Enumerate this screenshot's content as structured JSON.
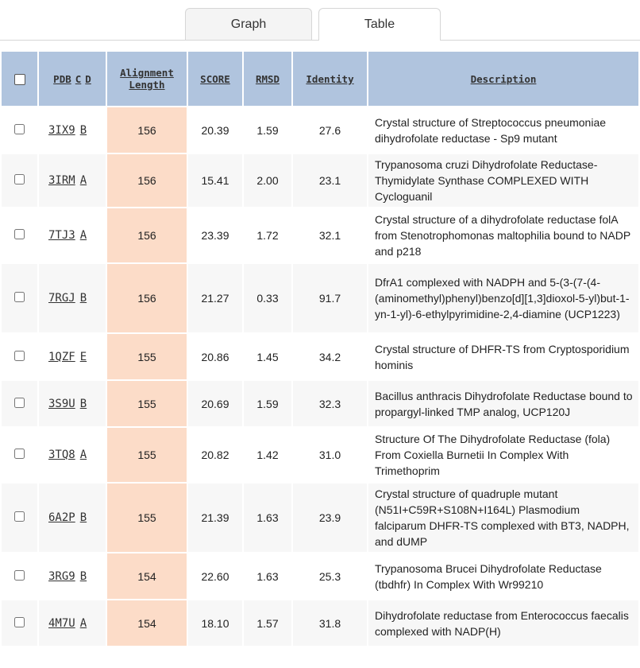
{
  "tabs": {
    "graph": "Graph",
    "table": "Table"
  },
  "headers": {
    "pdb": "PDB",
    "c": "C",
    "d": "D",
    "alignment_line1": "Alignment",
    "alignment_line2": "Length",
    "score": "SCORE",
    "rmsd": "RMSD",
    "identity": "Identity",
    "description": "Description"
  },
  "rows": [
    {
      "pdb": "3IX9",
      "chain": "B",
      "alignment": "156",
      "score": "20.39",
      "rmsd": "1.59",
      "identity": "27.6",
      "description": "Crystal structure of Streptococcus pneumoniae dihydrofolate reductase - Sp9 mutant"
    },
    {
      "pdb": "3IRM",
      "chain": "A",
      "alignment": "156",
      "score": "15.41",
      "rmsd": "2.00",
      "identity": "23.1",
      "description": "Trypanosoma cruzi Dihydrofolate Reductase-Thymidylate Synthase COMPLEXED WITH Cycloguanil"
    },
    {
      "pdb": "7TJ3",
      "chain": "A",
      "alignment": "156",
      "score": "23.39",
      "rmsd": "1.72",
      "identity": "32.1",
      "description": "Crystal structure of a dihydrofolate reductase folA from Stenotrophomonas maltophilia bound to NADP and p218"
    },
    {
      "pdb": "7RGJ",
      "chain": "B",
      "alignment": "156",
      "score": "21.27",
      "rmsd": "0.33",
      "identity": "91.7",
      "description": "DfrA1 complexed with NADPH and 5-(3-(7-(4-(aminomethyl)phenyl)benzo[d][1,3]dioxol-5-yl)but-1-yn-1-yl)-6-ethylpyrimidine-2,4-diamine (UCP1223)"
    },
    {
      "pdb": "1QZF",
      "chain": "E",
      "alignment": "155",
      "score": "20.86",
      "rmsd": "1.45",
      "identity": "34.2",
      "description": "Crystal structure of DHFR-TS from Cryptosporidium hominis"
    },
    {
      "pdb": "3S9U",
      "chain": "B",
      "alignment": "155",
      "score": "20.69",
      "rmsd": "1.59",
      "identity": "32.3",
      "description": "Bacillus anthracis Dihydrofolate Reductase bound to propargyl-linked TMP analog, UCP120J"
    },
    {
      "pdb": "3TQ8",
      "chain": "A",
      "alignment": "155",
      "score": "20.82",
      "rmsd": "1.42",
      "identity": "31.0",
      "description": "Structure Of The Dihydrofolate Reductase (fola) From Coxiella Burnetii In Complex With Trimethoprim"
    },
    {
      "pdb": "6A2P",
      "chain": "B",
      "alignment": "155",
      "score": "21.39",
      "rmsd": "1.63",
      "identity": "23.9",
      "description": "Crystal structure of quadruple mutant (N51I+C59R+S108N+I164L) Plasmodium falciparum DHFR-TS complexed with BT3, NADPH, and dUMP"
    },
    {
      "pdb": "3RG9",
      "chain": "B",
      "alignment": "154",
      "score": "22.60",
      "rmsd": "1.63",
      "identity": "25.3",
      "description": "Trypanosoma Brucei Dihydrofolate Reductase (tbdhfr) In Complex With Wr99210"
    },
    {
      "pdb": "4M7U",
      "chain": "A",
      "alignment": "154",
      "score": "18.10",
      "rmsd": "1.57",
      "identity": "31.8",
      "description": "Dihydrofolate reductase from Enterococcus faecalis complexed with NADP(H)"
    }
  ]
}
